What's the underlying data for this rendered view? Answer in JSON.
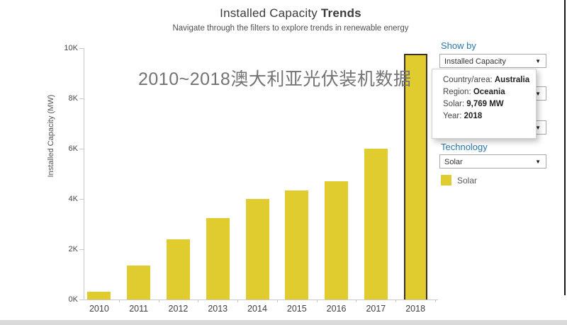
{
  "header": {
    "title_regular": "Installed Capacity ",
    "title_bold": "Trends",
    "subtitle": "Navigate through the filters to explore trends in renewable energy"
  },
  "annotation": {
    "text": "2010~2018澳大利亚光伏装机数据"
  },
  "chart_data": {
    "type": "bar",
    "title": "Installed Capacity Trends",
    "categories": [
      "2010",
      "2011",
      "2012",
      "2013",
      "2014",
      "2015",
      "2016",
      "2017",
      "2018"
    ],
    "values": [
      300,
      1350,
      2400,
      3250,
      4000,
      4350,
      4700,
      6000,
      9769
    ],
    "series_name": "Solar",
    "xlabel": "",
    "ylabel": "Installed Capacity (MW)",
    "ylim": [
      0,
      10000
    ],
    "yticks": [
      {
        "label": "0K",
        "value": 0
      },
      {
        "label": "2K",
        "value": 2000
      },
      {
        "label": "4K",
        "value": 4000
      },
      {
        "label": "6K",
        "value": 6000
      },
      {
        "label": "8K",
        "value": 8000
      },
      {
        "label": "10K",
        "value": 10000
      }
    ],
    "grid": false,
    "bar_color": "#e1cc30",
    "selected_index": 8,
    "selected_border_color": "#3a3226",
    "legend_position": "right"
  },
  "tooltip": {
    "rows": [
      {
        "label": "Country/area: ",
        "value": "Australia"
      },
      {
        "label": "Region: ",
        "value": "Oceania"
      },
      {
        "label": "Solar: ",
        "value": "9,769 MW"
      },
      {
        "label": "Year: ",
        "value": "2018"
      }
    ]
  },
  "filters": {
    "show_by": {
      "label": "Show by",
      "value": "Installed Capacity"
    },
    "technology": {
      "label": "Technology",
      "value": "Solar"
    }
  },
  "legend": {
    "label": "Solar",
    "color": "#e1cc30"
  },
  "colors": {
    "heading_blue": "#2878ad",
    "bar_yellow": "#e1cc30",
    "axis_gray": "#c9c9c9"
  }
}
